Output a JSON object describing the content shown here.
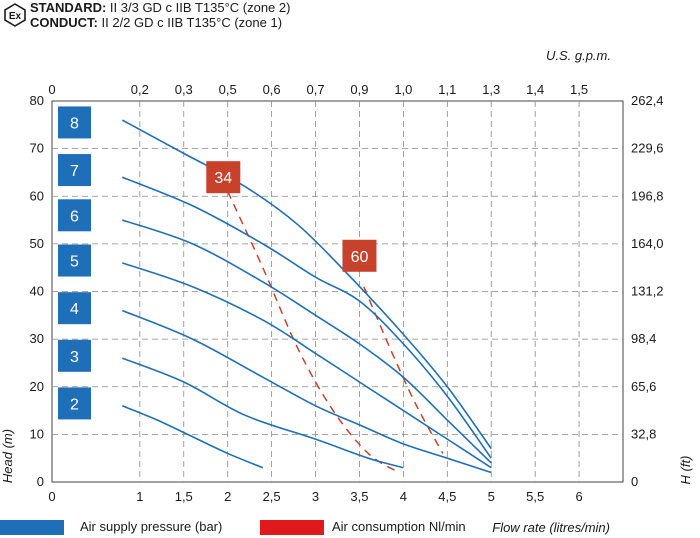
{
  "header": {
    "standard_label": "STANDARD:",
    "standard_text": " II 3/3 GD c IIB T135°C (zone 2)",
    "conduct_label": "CONDUCT:",
    "conduct_text": " II 2/2 GD c IIB T135°C (zone 1)",
    "logo_text": "Ex"
  },
  "colors": {
    "pressure": "#1f6fb8",
    "consumption": "#c8412a",
    "grid": "#888888"
  },
  "chart_data": {
    "type": "line",
    "x_bottom": {
      "label": "Flow rate (litres/min)",
      "ticks": [
        "0",
        "1",
        "1,5",
        "2",
        "2,5",
        "3",
        "3,5",
        "4",
        "4,5",
        "5",
        "5,5",
        "6"
      ],
      "tick_values": [
        0,
        1,
        1.5,
        2,
        2.5,
        3,
        3.5,
        4,
        4.5,
        5,
        5.5,
        6
      ],
      "range": [
        0,
        6.5
      ]
    },
    "x_top": {
      "label": "U.S. g.p.m.",
      "ticks": [
        "0",
        "0,2",
        "0,3",
        "0,5",
        "0,6",
        "0,7",
        "0,9",
        "1,0",
        "1,1",
        "1,3",
        "1,4",
        "1,5"
      ]
    },
    "y_left": {
      "label": "Head (m)",
      "ticks": [
        "0",
        "10",
        "20",
        "30",
        "40",
        "50",
        "60",
        "70",
        "80"
      ],
      "tick_values": [
        0,
        10,
        20,
        30,
        40,
        50,
        60,
        70,
        80
      ],
      "range": [
        0,
        80
      ]
    },
    "y_right": {
      "label": "H (ft)",
      "ticks": [
        "0",
        "32,8",
        "65,6",
        "98,4",
        "131,2",
        "164,0",
        "196,8",
        "229,6",
        "262,4"
      ]
    },
    "pressure_series": [
      {
        "name": "2",
        "label_y": 16.5,
        "points": [
          [
            0.8,
            16
          ],
          [
            1.2,
            13
          ],
          [
            1.6,
            9.5
          ],
          [
            2.0,
            6
          ],
          [
            2.4,
            3
          ]
        ]
      },
      {
        "name": "3",
        "label_y": 26.5,
        "points": [
          [
            0.8,
            26
          ],
          [
            1.5,
            21
          ],
          [
            2.2,
            14
          ],
          [
            3.0,
            9
          ],
          [
            3.6,
            5
          ],
          [
            4.0,
            3
          ]
        ]
      },
      {
        "name": "4",
        "label_y": 36.5,
        "points": [
          [
            0.8,
            36
          ],
          [
            1.6,
            30
          ],
          [
            2.4,
            22
          ],
          [
            3.0,
            16
          ],
          [
            3.5,
            12
          ],
          [
            4.0,
            8
          ],
          [
            4.5,
            5
          ],
          [
            5.0,
            2
          ]
        ]
      },
      {
        "name": "5",
        "label_y": 46.5,
        "points": [
          [
            0.8,
            46
          ],
          [
            1.6,
            41
          ],
          [
            2.4,
            34
          ],
          [
            3.0,
            27
          ],
          [
            3.5,
            21
          ],
          [
            4.0,
            15
          ],
          [
            4.5,
            9
          ],
          [
            5.0,
            3
          ]
        ]
      },
      {
        "name": "6",
        "label_y": 56,
        "points": [
          [
            0.8,
            55
          ],
          [
            1.6,
            50
          ],
          [
            2.4,
            42
          ],
          [
            3.0,
            35
          ],
          [
            3.5,
            29
          ],
          [
            4.0,
            22
          ],
          [
            4.5,
            13
          ],
          [
            5.0,
            4
          ]
        ]
      },
      {
        "name": "7",
        "label_y": 65.5,
        "points": [
          [
            0.8,
            64
          ],
          [
            1.6,
            58
          ],
          [
            2.4,
            50
          ],
          [
            3.0,
            43
          ],
          [
            3.5,
            38
          ],
          [
            4.0,
            29
          ],
          [
            4.5,
            18
          ],
          [
            5.0,
            5
          ]
        ]
      },
      {
        "name": "8",
        "label_y": 75.5,
        "points": [
          [
            0.8,
            76
          ],
          [
            1.5,
            69
          ],
          [
            2.2,
            62
          ],
          [
            2.8,
            54
          ],
          [
            3.4,
            43
          ],
          [
            4.0,
            31
          ],
          [
            4.5,
            20
          ],
          [
            5.0,
            7
          ]
        ]
      }
    ],
    "consumption_series": [
      {
        "name": "34",
        "label_x": 1.95,
        "label_y": 64,
        "points": [
          [
            2.0,
            61
          ],
          [
            2.4,
            45
          ],
          [
            2.8,
            28
          ],
          [
            3.2,
            15
          ],
          [
            3.6,
            6
          ],
          [
            3.95,
            2
          ]
        ]
      },
      {
        "name": "60",
        "label_x": 3.5,
        "label_y": 47.5,
        "points": [
          [
            3.55,
            41
          ],
          [
            3.85,
            28
          ],
          [
            4.15,
            16
          ],
          [
            4.45,
            6
          ]
        ]
      }
    ]
  },
  "legend": {
    "pressure_label": "Air supply pressure (bar)",
    "consumption_label": "Air consumption Nl/min"
  }
}
